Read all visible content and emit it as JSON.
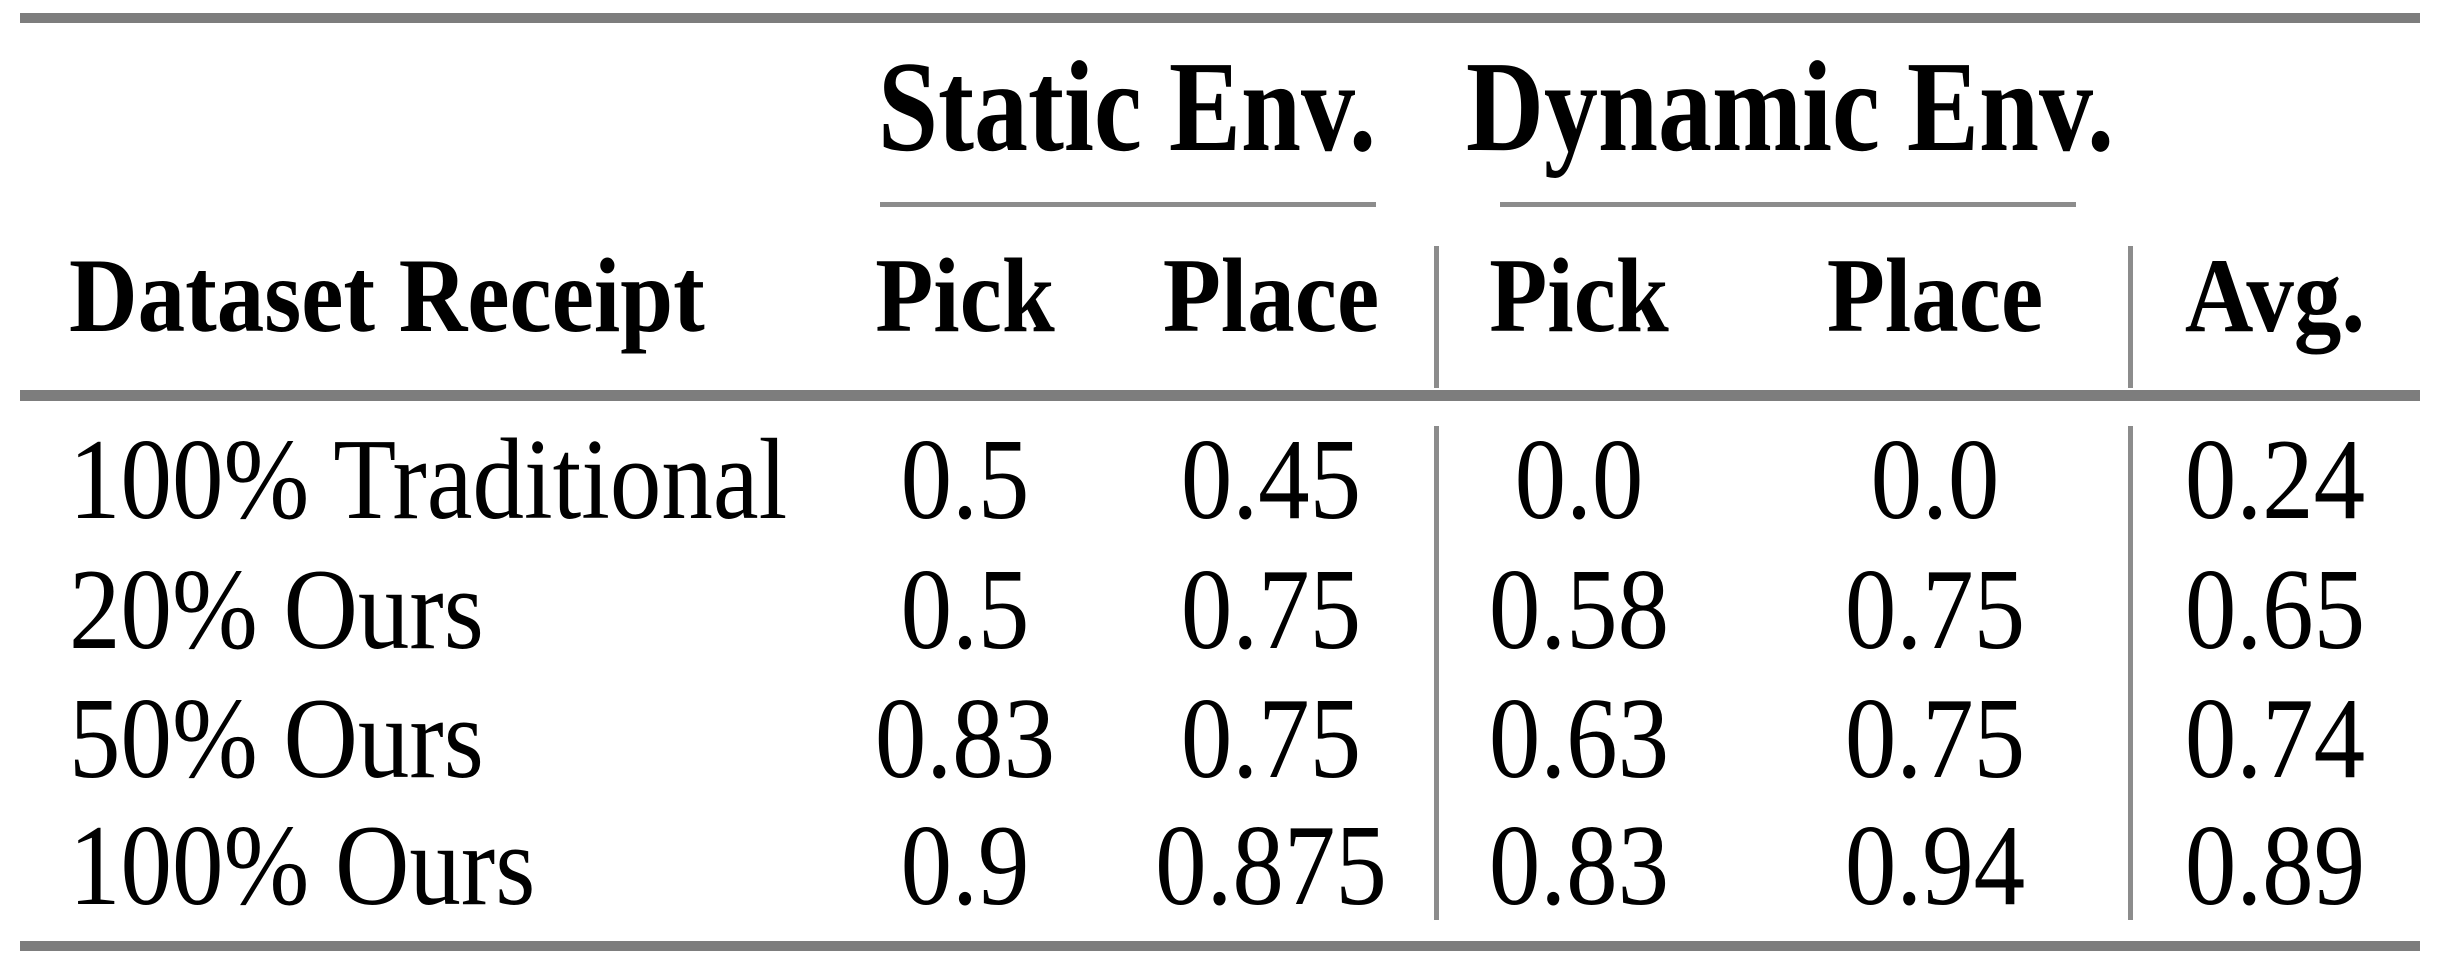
{
  "table": {
    "corner_header": "Dataset Receipt",
    "group_headers": [
      {
        "label": "Static Env."
      },
      {
        "label": "Dynamic Env."
      }
    ],
    "sub_headers": [
      "Pick",
      "Place",
      "Pick",
      "Place"
    ],
    "avg_header": "Avg.",
    "rows": [
      {
        "label": "100% Traditional",
        "cells": [
          "0.5",
          "0.45",
          "0.0",
          "0.0",
          "0.24"
        ]
      },
      {
        "label": "20% Ours",
        "cells": [
          "0.5",
          "0.75",
          "0.58",
          "0.75",
          "0.65"
        ]
      },
      {
        "label": "50% Ours",
        "cells": [
          "0.83",
          "0.75",
          "0.63",
          "0.75",
          "0.74"
        ]
      },
      {
        "label": "100% Ours",
        "cells": [
          "0.9",
          "0.875",
          "0.83",
          "0.94",
          "0.89"
        ]
      }
    ],
    "colors": {
      "thick_rule": "#7d7d7d",
      "thin_rule": "#8c8c8c",
      "text": "#000000",
      "background": "#ffffff"
    }
  },
  "chart_data": {
    "type": "table",
    "title": "",
    "column_groups": [
      "Static Env.",
      "Dynamic Env."
    ],
    "columns": [
      "Dataset Receipt",
      "Static Env. Pick",
      "Static Env. Place",
      "Dynamic Env. Pick",
      "Dynamic Env. Place",
      "Avg."
    ],
    "rows": [
      [
        "100% Traditional",
        0.5,
        0.45,
        0.0,
        0.0,
        0.24
      ],
      [
        "20% Ours",
        0.5,
        0.75,
        0.58,
        0.75,
        0.65
      ],
      [
        "50% Ours",
        0.83,
        0.75,
        0.63,
        0.75,
        0.74
      ],
      [
        "100% Ours",
        0.9,
        0.875,
        0.83,
        0.94,
        0.89
      ]
    ]
  }
}
